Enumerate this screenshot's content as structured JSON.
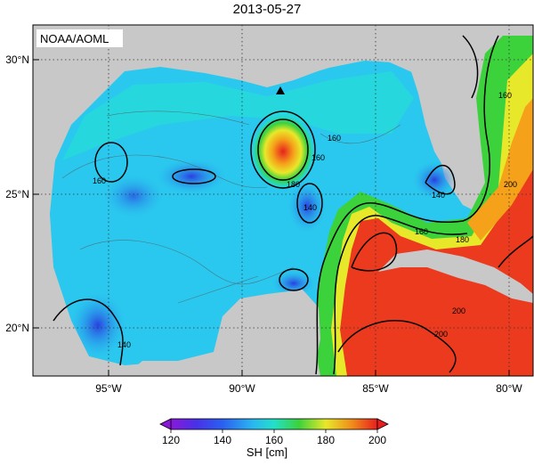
{
  "title": "2013-05-27",
  "credit": "NOAA/AOML",
  "lat_labels": [
    "30°N",
    "25°N",
    "20°N"
  ],
  "lon_labels": [
    "95°W",
    "90°W",
    "85°W",
    "80°W"
  ],
  "contour_labels": [
    "160",
    "180",
    "160",
    "140",
    "160",
    "160",
    "140",
    "200",
    "180",
    "160",
    "200",
    "200",
    "140"
  ],
  "colorbar": {
    "label": "SH [cm]",
    "ticks": [
      "120",
      "140",
      "160",
      "180",
      "200"
    ],
    "colors": [
      "#8a18d8",
      "#2a4ae8",
      "#2ab8f0",
      "#22e0c8",
      "#3cd23c",
      "#e8e82a",
      "#f08a1a",
      "#e81e1e"
    ]
  },
  "colors": {
    "land": "#c8c8c8",
    "ocean_low": "#2a4ae8",
    "ocean_mid": "#22d8e0",
    "ocean_high": "#e81e1e"
  }
}
